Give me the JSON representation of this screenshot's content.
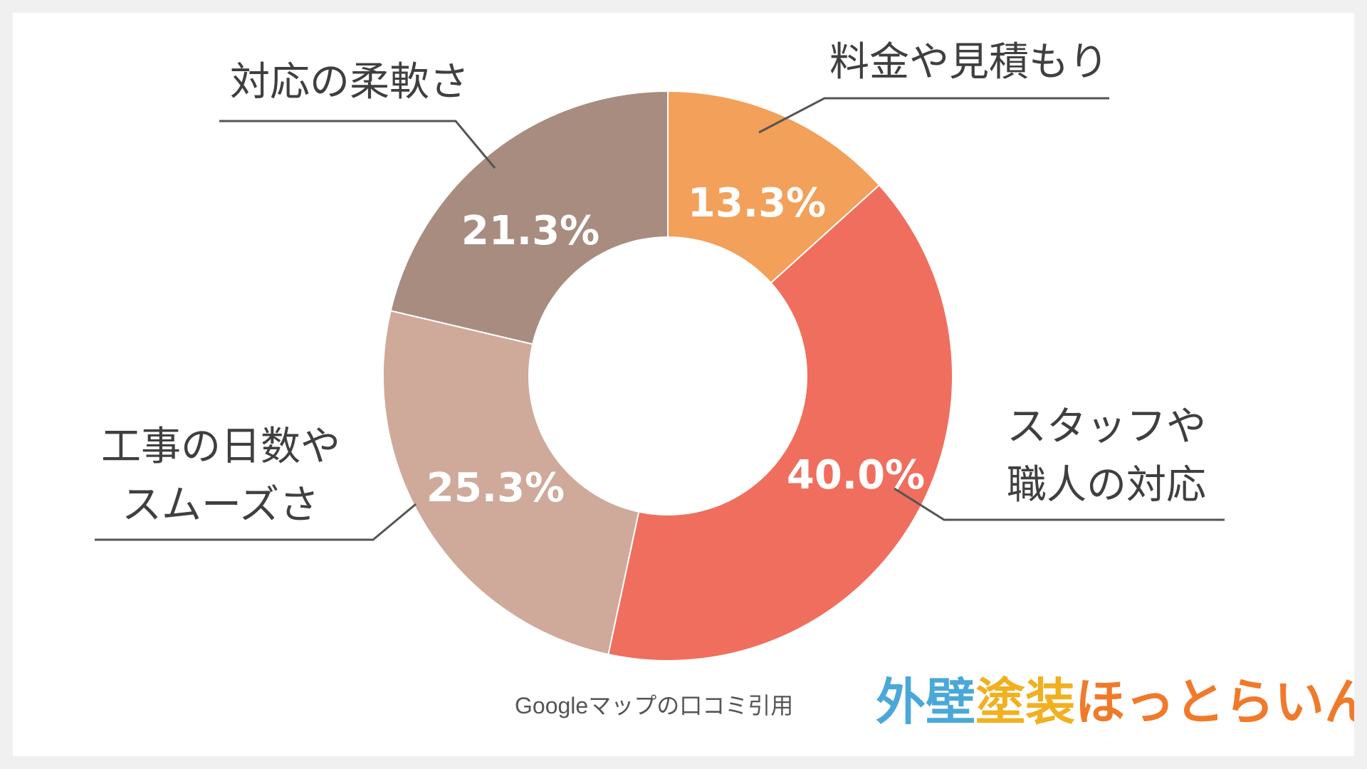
{
  "chart_data": {
    "type": "pie",
    "variant": "donut",
    "title": "",
    "slices": [
      {
        "label": "料金や見積もり",
        "value": 13.3,
        "value_label": "13.3%",
        "color": "#f2a05a"
      },
      {
        "label": "スタッフや職人の対応",
        "value": 40.0,
        "value_label": "40.0%",
        "color": "#f06e5d"
      },
      {
        "label": "工事の日数やスムーズさ",
        "value": 25.3,
        "value_label": "25.3%",
        "color": "#cfa99a"
      },
      {
        "label": "対応の柔軟さ",
        "value": 21.3,
        "value_label": "21.3%",
        "color": "#a88c80"
      }
    ]
  },
  "label_lines": {
    "ryokin": [
      "料金や見積もり"
    ],
    "staff": [
      "スタッフや",
      "職人の対応"
    ],
    "koji": [
      "工事の日数や",
      "スムーズさ"
    ],
    "taio": [
      "対応の柔軟さ"
    ]
  },
  "source": "Googleマップの口コミ引用",
  "logo": {
    "text": "外壁塗装ほっとらいん",
    "parts": [
      {
        "text": "外壁",
        "color": "#4aa8d8"
      },
      {
        "text": "塗装",
        "color": "#f0b020"
      },
      {
        "text": "ほっとらいん",
        "color": "#f07a2a"
      }
    ]
  }
}
